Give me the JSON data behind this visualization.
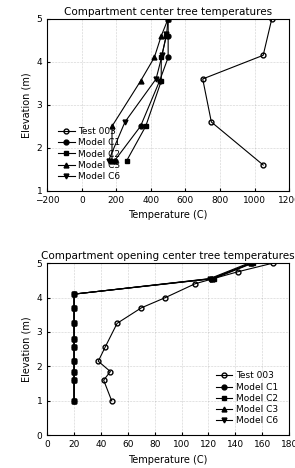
{
  "top_title": "Compartment center tree temperatures",
  "bottom_title": "Compartment opening center tree temperatures",
  "xlabel": "Temperature (C)",
  "ylabel": "Elevation (m)",
  "top": {
    "xlim": [
      -200,
      1200
    ],
    "xticks": [
      -200,
      0,
      200,
      400,
      600,
      800,
      1000,
      1200
    ],
    "ylim": [
      1,
      5
    ],
    "yticks": [
      1,
      2,
      3,
      4,
      5
    ],
    "test003": {
      "temp": [
        1050,
        750,
        700,
        1050,
        1100
      ],
      "elev": [
        1.6,
        2.6,
        3.6,
        4.15,
        5.0
      ]
    },
    "modelC1": {
      "temp": [
        190,
        340,
        450,
        500,
        500,
        500
      ],
      "elev": [
        1.7,
        2.5,
        3.55,
        4.1,
        4.6,
        5.0
      ]
    },
    "modelC2": {
      "temp": [
        260,
        370,
        460,
        460,
        490,
        500
      ],
      "elev": [
        1.7,
        2.5,
        3.55,
        4.1,
        4.6,
        5.0
      ]
    },
    "modelC3": {
      "temp": [
        175,
        175,
        340,
        420,
        460,
        500
      ],
      "elev": [
        1.7,
        2.5,
        3.55,
        4.1,
        4.6,
        5.0
      ]
    },
    "modelC6": {
      "temp": [
        155,
        250,
        430,
        465,
        490
      ],
      "elev": [
        1.7,
        2.6,
        3.6,
        4.15,
        4.65
      ]
    }
  },
  "bottom": {
    "xlim": [
      0,
      180
    ],
    "xticks": [
      0,
      20,
      40,
      60,
      80,
      100,
      120,
      140,
      160,
      180
    ],
    "ylim": [
      0,
      5
    ],
    "yticks": [
      0,
      1,
      2,
      3,
      4,
      5
    ],
    "test003": {
      "temp": [
        48,
        42,
        47,
        38,
        43,
        52,
        70,
        88,
        110,
        142,
        168
      ],
      "elev": [
        1.0,
        1.6,
        1.85,
        2.15,
        2.55,
        3.25,
        3.7,
        4.0,
        4.4,
        4.75,
        5.0
      ]
    },
    "modelC1": {
      "temp": [
        20,
        20,
        20,
        20,
        20,
        20,
        20,
        20,
        20,
        122,
        152
      ],
      "elev": [
        1.0,
        1.6,
        1.85,
        2.15,
        2.55,
        2.8,
        3.25,
        3.7,
        4.1,
        4.55,
        5.0
      ]
    },
    "modelC2": {
      "temp": [
        20,
        20,
        20,
        20,
        20,
        20,
        20,
        20,
        20,
        124,
        153
      ],
      "elev": [
        1.0,
        1.6,
        1.85,
        2.15,
        2.55,
        2.8,
        3.25,
        3.7,
        4.1,
        4.55,
        5.0
      ]
    },
    "modelC3": {
      "temp": [
        20,
        20,
        20,
        20,
        20,
        20,
        20,
        20,
        20,
        123,
        152
      ],
      "elev": [
        1.0,
        1.6,
        1.85,
        2.15,
        2.55,
        2.8,
        3.25,
        3.7,
        4.1,
        4.55,
        5.0
      ]
    },
    "modelC6": {
      "temp": [
        20,
        20,
        20,
        20,
        20,
        20,
        20,
        20,
        20,
        121,
        150
      ],
      "elev": [
        1.0,
        1.6,
        1.85,
        2.15,
        2.55,
        2.8,
        3.25,
        3.7,
        4.1,
        4.55,
        5.0
      ]
    }
  },
  "legend_labels": [
    "Test 003",
    "Model C1",
    "Model C2",
    "Model C3",
    "Model C6"
  ],
  "markers": [
    "o",
    "o",
    "s",
    "^",
    "v"
  ],
  "title_fontsize": 7.5,
  "label_fontsize": 7,
  "tick_fontsize": 6.5,
  "legend_fontsize": 6.5
}
